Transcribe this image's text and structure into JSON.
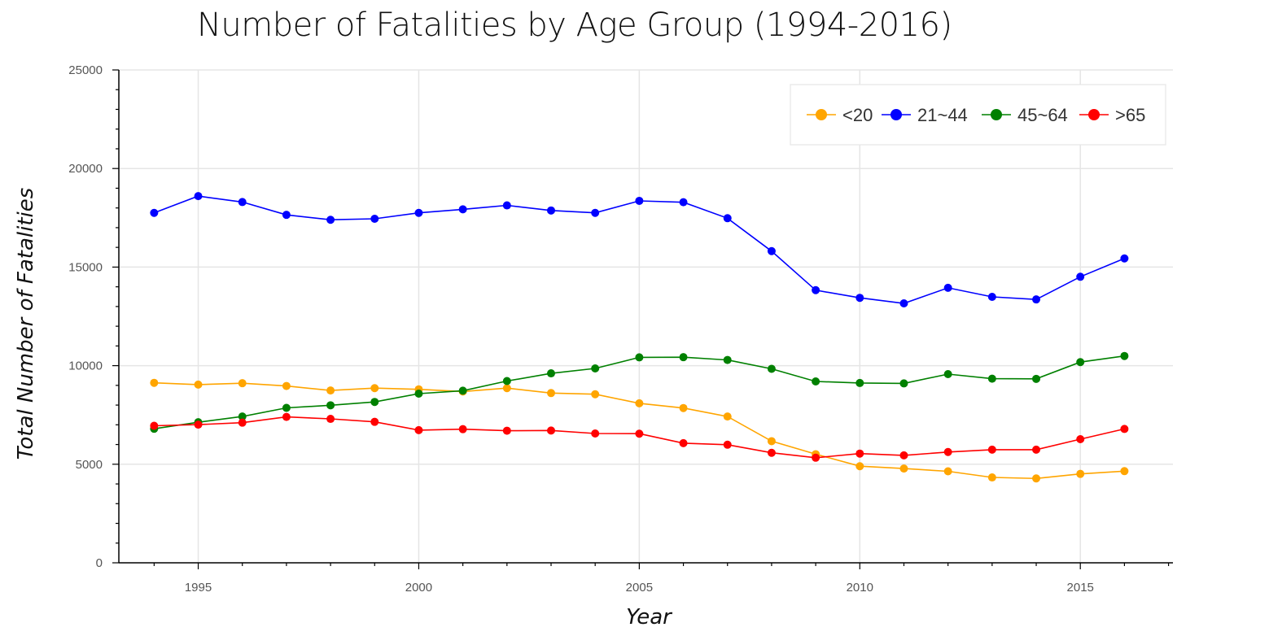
{
  "chart_data": {
    "type": "line",
    "title": "Number of Fatalities by Age Group (1994-2016)",
    "xlabel": "Year",
    "ylabel": "Total Number of Fatalities",
    "xlim": [
      1993.2,
      2017.1
    ],
    "ylim": [
      0,
      25000
    ],
    "x_ticks": [
      1995,
      2000,
      2005,
      2010,
      2015
    ],
    "y_ticks": [
      0,
      5000,
      10000,
      15000,
      20000,
      25000
    ],
    "grid": true,
    "legend_position": "top-right",
    "x": [
      1994,
      1995,
      1996,
      1997,
      1998,
      1999,
      2000,
      2001,
      2002,
      2003,
      2004,
      2005,
      2006,
      2007,
      2008,
      2009,
      2010,
      2011,
      2012,
      2013,
      2014,
      2015,
      2016
    ],
    "series": [
      {
        "name": "<20",
        "color": "#FFA500",
        "values": [
          9130,
          9040,
          9110,
          8970,
          8740,
          8860,
          8800,
          8690,
          8860,
          8610,
          8550,
          8090,
          7850,
          7420,
          6170,
          5510,
          4900,
          4780,
          4640,
          4330,
          4280,
          4510,
          4650
        ]
      },
      {
        "name": "21~44",
        "color": "#0000FF",
        "values": [
          17750,
          18600,
          18300,
          17650,
          17400,
          17450,
          17750,
          17930,
          18130,
          17870,
          17750,
          18360,
          18290,
          17480,
          15810,
          13830,
          13440,
          13160,
          13950,
          13490,
          13360,
          14510,
          15440
        ]
      },
      {
        "name": "45~64",
        "color": "#008000",
        "values": [
          6800,
          7130,
          7420,
          7860,
          7990,
          8160,
          8580,
          8730,
          9220,
          9610,
          9860,
          10420,
          10430,
          10290,
          9840,
          9200,
          9120,
          9100,
          9570,
          9340,
          9330,
          10180,
          10490
        ]
      },
      {
        "name": ">65",
        "color": "#FF0000",
        "values": [
          6950,
          7010,
          7110,
          7400,
          7300,
          7150,
          6730,
          6780,
          6700,
          6710,
          6560,
          6550,
          6070,
          5990,
          5580,
          5330,
          5540,
          5450,
          5620,
          5740,
          5740,
          6270,
          6790
        ]
      }
    ]
  }
}
